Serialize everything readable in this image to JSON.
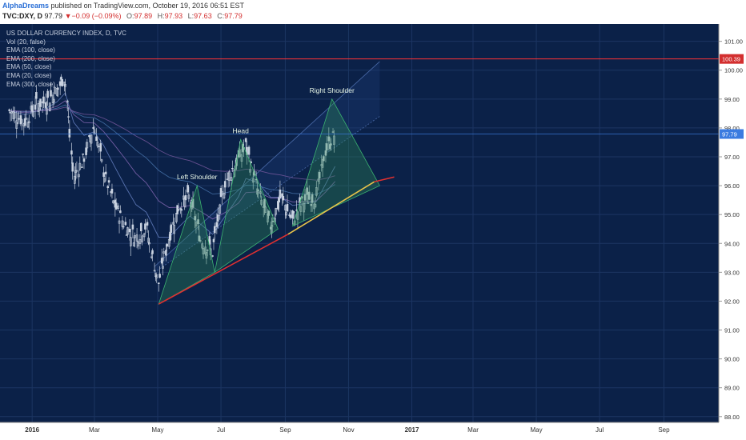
{
  "header": {
    "author": "AlphaDreams",
    "published": "published on TradingView.com, October 19, 2016 06:51 EST",
    "symbol": "TVC:DXY, D",
    "last": "97.79",
    "change": "▼−0.09 (−0.09%)",
    "open_label": "O:",
    "open": "97.89",
    "high_label": "H:",
    "high": "97.93",
    "low_label": "L:",
    "low": "97.63",
    "close_label": "C:",
    "close": "97.79"
  },
  "legend": {
    "title": "US DOLLAR CURRENCY INDEX, D, TVC",
    "studies": [
      "Vol (20, false)",
      "EMA (100, close)",
      "EMA (200, close)",
      "EMA (50, close)",
      "EMA (20, close)",
      "EMA (300, close)"
    ]
  },
  "colors": {
    "background": "#0b2148",
    "grid": "#1c3562",
    "candle": "#c9d2e0",
    "support": "#e8c44a",
    "support_ext": "#e03030",
    "resistance": "#ff3333",
    "current_price": "#3a7be0",
    "pattern_fill": "#2e8b57",
    "axis_bg": "#ffffff",
    "axis_text": "#333333"
  },
  "chart_data": {
    "type": "candlestick",
    "title": "US DOLLAR CURRENCY INDEX, D, TVC",
    "ylim": [
      87.8,
      101.6
    ],
    "y_ticks": [
      "88.00",
      "89.00",
      "90.00",
      "91.00",
      "92.00",
      "93.00",
      "94.00",
      "95.00",
      "96.00",
      "97.00",
      "98.00",
      "99.00",
      "100.00",
      "101.00"
    ],
    "x_ticks": [
      {
        "label": "2016",
        "date": "2016-01-01",
        "bold": true
      },
      {
        "label": "Mar",
        "date": "2016-03-01"
      },
      {
        "label": "May",
        "date": "2016-05-01"
      },
      {
        "label": "Jul",
        "date": "2016-07-01"
      },
      {
        "label": "Sep",
        "date": "2016-09-01"
      },
      {
        "label": "Nov",
        "date": "2016-11-01"
      },
      {
        "label": "2017",
        "date": "2017-01-01",
        "bold": true
      },
      {
        "label": "Mar",
        "date": "2017-03-01"
      },
      {
        "label": "May",
        "date": "2017-05-01"
      },
      {
        "label": "Jul",
        "date": "2017-07-01"
      },
      {
        "label": "Sep",
        "date": "2017-09-01"
      }
    ],
    "price_series": [
      [
        "2015-12-10",
        98.6
      ],
      [
        "2015-12-25",
        98.2
      ],
      [
        "2016-01-05",
        98.8
      ],
      [
        "2016-01-15",
        98.9
      ],
      [
        "2016-01-25",
        99.3
      ],
      [
        "2016-02-02",
        99.8
      ],
      [
        "2016-02-10",
        96.3
      ],
      [
        "2016-02-20",
        96.9
      ],
      [
        "2016-03-01",
        98.1
      ],
      [
        "2016-03-10",
        96.5
      ],
      [
        "2016-03-20",
        95.4
      ],
      [
        "2016-03-31",
        94.6
      ],
      [
        "2016-04-10",
        94.2
      ],
      [
        "2016-04-20",
        94.6
      ],
      [
        "2016-05-02",
        92.6
      ],
      [
        "2016-05-12",
        94.2
      ],
      [
        "2016-05-22",
        95.3
      ],
      [
        "2016-06-01",
        95.6
      ],
      [
        "2016-06-12",
        94.1
      ],
      [
        "2016-06-23",
        93.7
      ],
      [
        "2016-07-05",
        96.1
      ],
      [
        "2016-07-18",
        96.9
      ],
      [
        "2016-07-25",
        97.4
      ],
      [
        "2016-08-05",
        95.9
      ],
      [
        "2016-08-18",
        94.6
      ],
      [
        "2016-08-28",
        95.6
      ],
      [
        "2016-09-08",
        94.8
      ],
      [
        "2016-09-20",
        95.5
      ],
      [
        "2016-10-01",
        95.6
      ],
      [
        "2016-10-10",
        97.2
      ],
      [
        "2016-10-19",
        97.79
      ]
    ],
    "current_price": {
      "value": 97.79,
      "label": "97.79"
    },
    "resistance": {
      "value": 100.39,
      "label": "100.39"
    },
    "support_trendline": {
      "from": [
        "2016-05-02",
        91.9
      ],
      "to": [
        "2016-12-15",
        96.3
      ]
    },
    "channel_lines": [
      {
        "from": [
          "2016-04-28",
          93.2
        ],
        "to": [
          "2016-12-01",
          100.3
        ]
      },
      {
        "from": [
          "2016-04-28",
          93.0
        ],
        "to": [
          "2016-12-01",
          98.4
        ]
      }
    ],
    "head_and_shoulders": [
      {
        "label": "Left Shoulder",
        "points": [
          [
            "2016-05-02",
            91.9
          ],
          [
            "2016-06-08",
            96.0
          ],
          [
            "2016-06-25",
            93.0
          ]
        ]
      },
      {
        "label": "Head",
        "points": [
          [
            "2016-06-25",
            93.0
          ],
          [
            "2016-07-20",
            97.6
          ],
          [
            "2016-08-25",
            94.5
          ]
        ]
      },
      {
        "label": "Right Shoulder",
        "points": [
          [
            "2016-09-08",
            94.6
          ],
          [
            "2016-10-16",
            99.0
          ],
          [
            "2016-12-01",
            96.0
          ]
        ]
      }
    ]
  }
}
